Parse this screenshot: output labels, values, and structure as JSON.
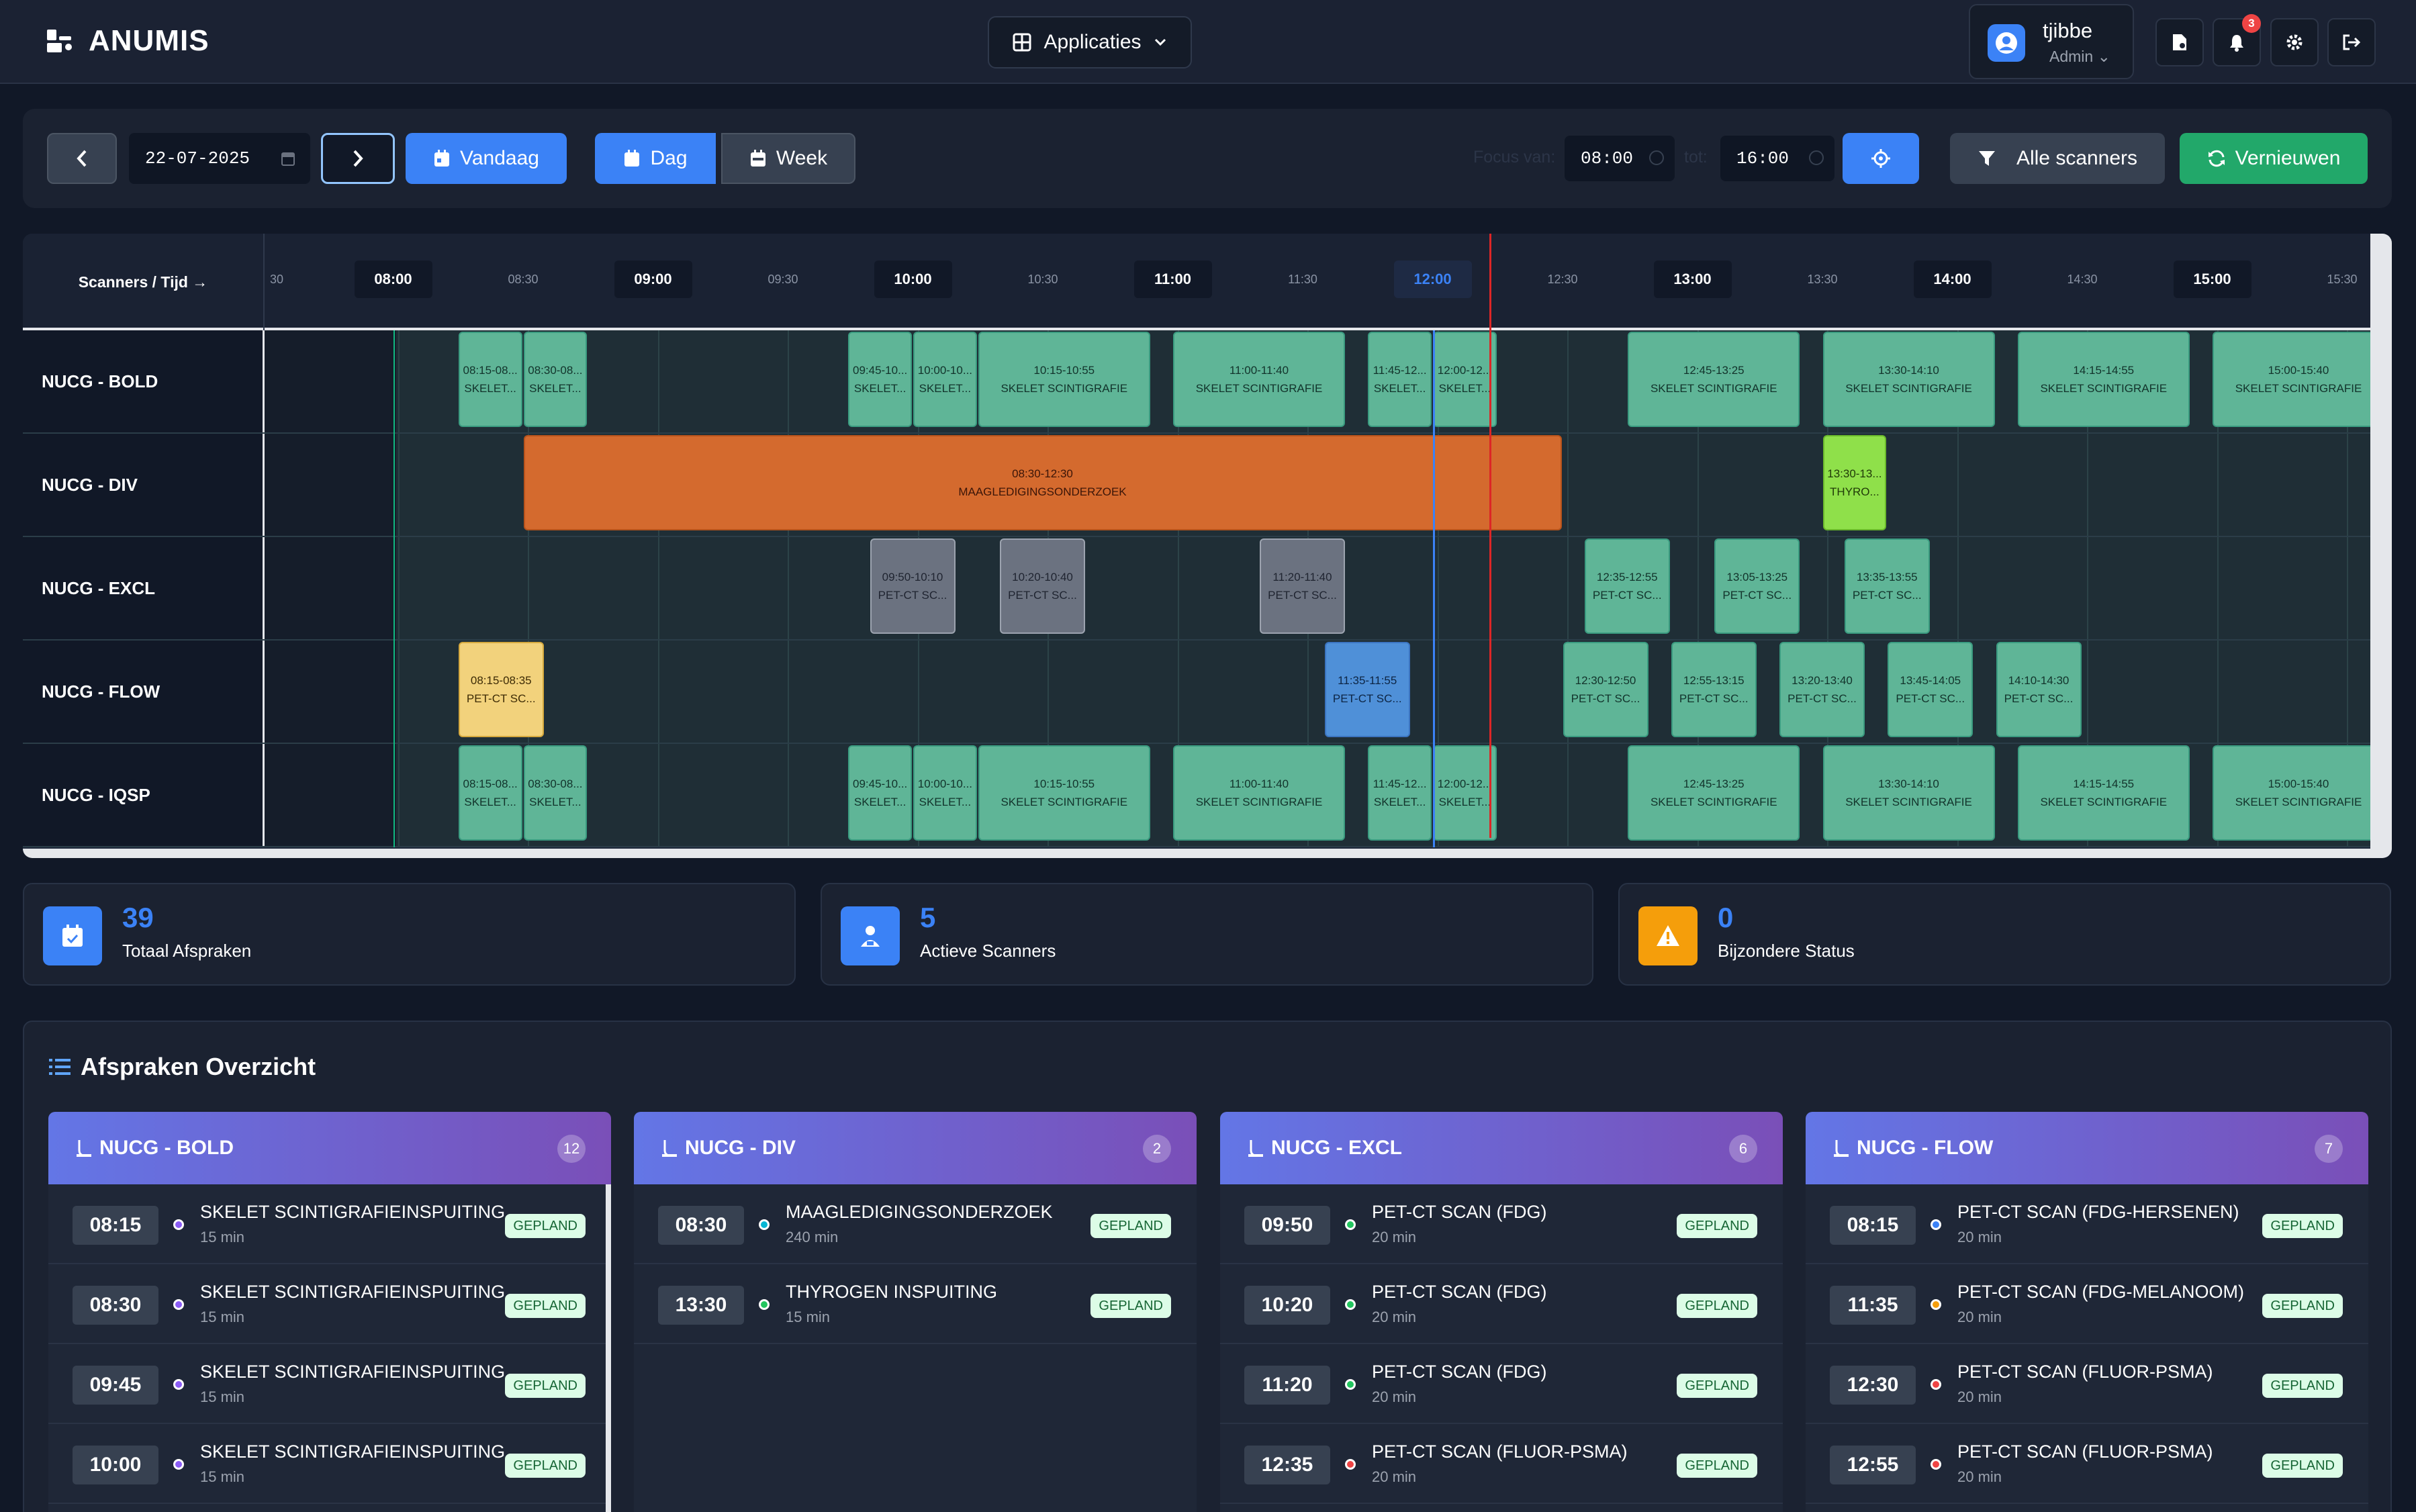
{
  "app": {
    "title": "ANUMIS"
  },
  "topbar": {
    "apps_label": "Applicaties",
    "user": {
      "name": "tjibbe",
      "role": "Admin"
    },
    "notifications_count": "3",
    "icons": [
      "file-user-icon",
      "bell-icon",
      "gear-icon",
      "logout-icon"
    ]
  },
  "toolbar": {
    "date_value": "22-07-2025",
    "today_label": "Vandaag",
    "day_label": "Dag",
    "week_label": "Week",
    "focus_from_label": "Focus van:",
    "focus_from": "08:00",
    "focus_to_label": "tot:",
    "focus_to": "16:00",
    "scanners_label": "Alle scanners",
    "refresh_label": "Vernieuwen",
    "active_view": "Dag"
  },
  "schedule": {
    "corner_label": "Scanners / Tijd →",
    "time_labels": [
      {
        "t": "30",
        "full": false
      },
      {
        "t": "08:00",
        "full": true
      },
      {
        "t": "08:30",
        "full": false
      },
      {
        "t": "09:00",
        "full": true
      },
      {
        "t": "09:30",
        "full": false
      },
      {
        "t": "10:00",
        "full": true
      },
      {
        "t": "10:30",
        "full": false
      },
      {
        "t": "11:00",
        "full": true
      },
      {
        "t": "11:30",
        "full": false
      },
      {
        "t": "12:00",
        "full": true,
        "current": true
      },
      {
        "t": "12:30",
        "full": false
      },
      {
        "t": "13:00",
        "full": true
      },
      {
        "t": "13:30",
        "full": false
      },
      {
        "t": "14:00",
        "full": true
      },
      {
        "t": "14:30",
        "full": false
      },
      {
        "t": "15:00",
        "full": true
      },
      {
        "t": "15:30",
        "full": false
      }
    ],
    "rows": [
      {
        "name": "NUCG - BOLD",
        "appointments": [
          {
            "time": "08:15-08...",
            "label": "SKELET...",
            "type": "green",
            "start": "08:15",
            "end": "08:30"
          },
          {
            "time": "08:30-08...",
            "label": "SKELET...",
            "type": "green",
            "start": "08:30",
            "end": "08:45"
          },
          {
            "time": "09:45-10...",
            "label": "SKELET...",
            "type": "green",
            "start": "09:45",
            "end": "10:00"
          },
          {
            "time": "10:00-10...",
            "label": "SKELET...",
            "type": "green",
            "start": "10:00",
            "end": "10:15"
          },
          {
            "time": "10:15-10:55",
            "label": "SKELET SCINTIGRAFIE",
            "type": "green",
            "start": "10:15",
            "end": "10:55"
          },
          {
            "time": "11:00-11:40",
            "label": "SKELET SCINTIGRAFIE",
            "type": "green",
            "start": "11:00",
            "end": "11:40"
          },
          {
            "time": "11:45-12...",
            "label": "SKELET...",
            "type": "green",
            "start": "11:45",
            "end": "12:00"
          },
          {
            "time": "12:00-12...",
            "label": "SKELET...",
            "type": "green",
            "start": "12:00",
            "end": "12:15"
          },
          {
            "time": "12:45-13:25",
            "label": "SKELET SCINTIGRAFIE",
            "type": "green",
            "start": "12:45",
            "end": "13:25"
          },
          {
            "time": "13:30-14:10",
            "label": "SKELET SCINTIGRAFIE",
            "type": "green",
            "start": "13:30",
            "end": "14:10"
          },
          {
            "time": "14:15-14:55",
            "label": "SKELET SCINTIGRAFIE",
            "type": "green",
            "start": "14:15",
            "end": "14:55"
          },
          {
            "time": "15:00-15:40",
            "label": "SKELET SCINTIGRAFIE",
            "type": "green",
            "start": "15:00",
            "end": "15:40"
          }
        ]
      },
      {
        "name": "NUCG - DIV",
        "appointments": [
          {
            "time": "08:30-12:30",
            "label": "MAAGLEDIGINGSONDERZOEK",
            "type": "div",
            "start": "08:30",
            "end": "12:30"
          },
          {
            "time": "13:30-13...",
            "label": "THYRO...",
            "type": "lime",
            "start": "13:30",
            "end": "13:45"
          }
        ]
      },
      {
        "name": "NUCG - EXCL",
        "appointments": [
          {
            "time": "09:50-10:10",
            "label": "PET-CT SC...",
            "type": "grey",
            "start": "09:50",
            "end": "10:10"
          },
          {
            "time": "10:20-10:40",
            "label": "PET-CT SC...",
            "type": "grey",
            "start": "10:20",
            "end": "10:40"
          },
          {
            "time": "11:20-11:40",
            "label": "PET-CT SC...",
            "type": "grey",
            "start": "11:20",
            "end": "11:40"
          },
          {
            "time": "12:35-12:55",
            "label": "PET-CT SC...",
            "type": "green",
            "start": "12:35",
            "end": "12:55"
          },
          {
            "time": "13:05-13:25",
            "label": "PET-CT SC...",
            "type": "green",
            "start": "13:05",
            "end": "13:25"
          },
          {
            "time": "13:35-13:55",
            "label": "PET-CT SC...",
            "type": "green",
            "start": "13:35",
            "end": "13:55"
          }
        ]
      },
      {
        "name": "NUCG - FLOW",
        "appointments": [
          {
            "time": "08:15-08:35",
            "label": "PET-CT SC...",
            "type": "yellow",
            "start": "08:15",
            "end": "08:35"
          },
          {
            "time": "11:35-11:55",
            "label": "PET-CT SC...",
            "type": "blue",
            "start": "11:35",
            "end": "11:55"
          },
          {
            "time": "12:30-12:50",
            "label": "PET-CT SC...",
            "type": "green",
            "start": "12:30",
            "end": "12:50"
          },
          {
            "time": "12:55-13:15",
            "label": "PET-CT SC...",
            "type": "green",
            "start": "12:55",
            "end": "13:15"
          },
          {
            "time": "13:20-13:40",
            "label": "PET-CT SC...",
            "type": "green",
            "start": "13:20",
            "end": "13:40"
          },
          {
            "time": "13:45-14:05",
            "label": "PET-CT SC...",
            "type": "green",
            "start": "13:45",
            "end": "14:05"
          },
          {
            "time": "14:10-14:30",
            "label": "PET-CT SC...",
            "type": "green",
            "start": "14:10",
            "end": "14:30"
          }
        ]
      },
      {
        "name": "NUCG - IQSP",
        "appointments": [
          {
            "time": "08:15-08...",
            "label": "SKELET...",
            "type": "green",
            "start": "08:15",
            "end": "08:30"
          },
          {
            "time": "08:30-08...",
            "label": "SKELET...",
            "type": "green",
            "start": "08:30",
            "end": "08:45"
          },
          {
            "time": "09:45-10...",
            "label": "SKELET...",
            "type": "green",
            "start": "09:45",
            "end": "10:00"
          },
          {
            "time": "10:00-10...",
            "label": "SKELET...",
            "type": "green",
            "start": "10:00",
            "end": "10:15"
          },
          {
            "time": "10:15-10:55",
            "label": "SKELET SCINTIGRAFIE",
            "type": "green",
            "start": "10:15",
            "end": "10:55"
          },
          {
            "time": "11:00-11:40",
            "label": "SKELET SCINTIGRAFIE",
            "type": "green",
            "start": "11:00",
            "end": "11:40"
          },
          {
            "time": "11:45-12...",
            "label": "SKELET...",
            "type": "green",
            "start": "11:45",
            "end": "12:00"
          },
          {
            "time": "12:00-12...",
            "label": "SKELET...",
            "type": "green",
            "start": "12:00",
            "end": "12:15"
          },
          {
            "time": "12:45-13:25",
            "label": "SKELET SCINTIGRAFIE",
            "type": "green",
            "start": "12:45",
            "end": "13:25"
          },
          {
            "time": "13:30-14:10",
            "label": "SKELET SCINTIGRAFIE",
            "type": "green",
            "start": "13:30",
            "end": "14:10"
          },
          {
            "time": "14:15-14:55",
            "label": "SKELET SCINTIGRAFIE",
            "type": "green",
            "start": "14:15",
            "end": "14:55"
          },
          {
            "time": "15:00-15:40",
            "label": "SKELET SCINTIGRAFIE",
            "type": "green",
            "start": "15:00",
            "end": "15:40"
          }
        ]
      }
    ]
  },
  "stats": [
    {
      "value": "39",
      "label": "Totaal Afspraken",
      "color": "#3b82f6",
      "icon": "calendar-check-icon"
    },
    {
      "value": "5",
      "label": "Actieve Scanners",
      "color": "#3b82f6",
      "icon": "scanner-user-icon"
    },
    {
      "value": "0",
      "label": "Bijzondere Status",
      "color": "#f59e0b",
      "icon": "warning-icon"
    }
  ],
  "overview": {
    "title": "Afspraken Overzicht",
    "columns": [
      {
        "name": "NUCG - BOLD",
        "count": "12",
        "items": [
          {
            "time": "08:15",
            "title": "SKELET SCINTIGRAFIEINSPUITING",
            "duration": "15 min",
            "status": "GEPLAND",
            "dot": "#8b5cf6"
          },
          {
            "time": "08:30",
            "title": "SKELET SCINTIGRAFIEINSPUITING",
            "duration": "15 min",
            "status": "GEPLAND",
            "dot": "#8b5cf6"
          },
          {
            "time": "09:45",
            "title": "SKELET SCINTIGRAFIEINSPUITING",
            "duration": "15 min",
            "status": "GEPLAND",
            "dot": "#8b5cf6"
          },
          {
            "time": "10:00",
            "title": "SKELET SCINTIGRAFIEINSPUITING",
            "duration": "15 min",
            "status": "GEPLAND",
            "dot": "#8b5cf6"
          }
        ]
      },
      {
        "name": "NUCG - DIV",
        "count": "2",
        "items": [
          {
            "time": "08:30",
            "title": "MAAGLEDIGINGSONDERZOEK",
            "duration": "240 min",
            "status": "GEPLAND",
            "dot": "#06b6d4"
          },
          {
            "time": "13:30",
            "title": "THYROGEN INSPUITING",
            "duration": "15 min",
            "status": "GEPLAND",
            "dot": "#22c55e"
          }
        ]
      },
      {
        "name": "NUCG - EXCL",
        "count": "6",
        "items": [
          {
            "time": "09:50",
            "title": "PET-CT SCAN (FDG)",
            "duration": "20 min",
            "status": "GEPLAND",
            "dot": "#22c55e"
          },
          {
            "time": "10:20",
            "title": "PET-CT SCAN (FDG)",
            "duration": "20 min",
            "status": "GEPLAND",
            "dot": "#22c55e"
          },
          {
            "time": "11:20",
            "title": "PET-CT SCAN (FDG)",
            "duration": "20 min",
            "status": "GEPLAND",
            "dot": "#22c55e"
          },
          {
            "time": "12:35",
            "title": "PET-CT SCAN (FLUOR-PSMA)",
            "duration": "20 min",
            "status": "GEPLAND",
            "dot": "#ef4444"
          }
        ]
      },
      {
        "name": "NUCG - FLOW",
        "count": "7",
        "items": [
          {
            "time": "08:15",
            "title": "PET-CT SCAN (FDG-HERSENEN)",
            "duration": "20 min",
            "status": "GEPLAND",
            "dot": "#3b82f6"
          },
          {
            "time": "11:35",
            "title": "PET-CT SCAN (FDG-MELANOOM)",
            "duration": "20 min",
            "status": "GEPLAND",
            "dot": "#f59e0b"
          },
          {
            "time": "12:30",
            "title": "PET-CT SCAN (FLUOR-PSMA)",
            "duration": "20 min",
            "status": "GEPLAND",
            "dot": "#ef4444"
          },
          {
            "time": "12:55",
            "title": "PET-CT SCAN (FLUOR-PSMA)",
            "duration": "20 min",
            "status": "GEPLAND",
            "dot": "#ef4444"
          }
        ]
      }
    ]
  },
  "current_time": "12:13"
}
